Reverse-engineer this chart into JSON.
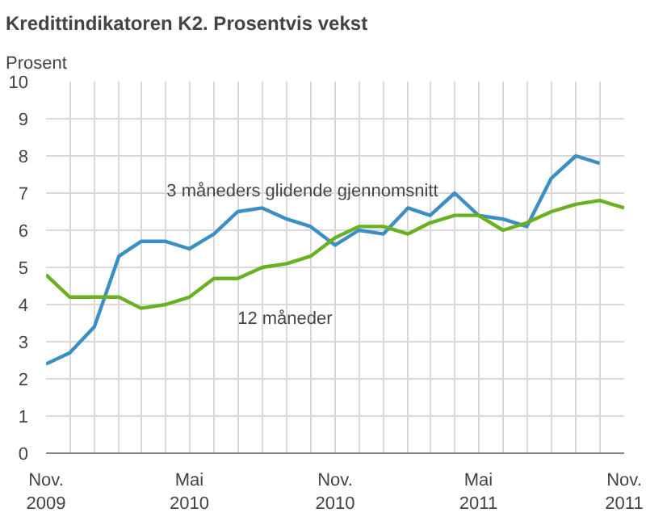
{
  "chart_data": {
    "type": "line",
    "title": "Kredittindikatoren K2. Prosentvis vekst",
    "ylabel": "Prosent",
    "x": [
      "2009-11",
      "2009-12",
      "2010-01",
      "2010-02",
      "2010-03",
      "2010-04",
      "2010-05",
      "2010-06",
      "2010-07",
      "2010-08",
      "2010-09",
      "2010-10",
      "2010-11",
      "2010-12",
      "2011-01",
      "2011-02",
      "2011-03",
      "2011-04",
      "2011-05",
      "2011-06",
      "2011-07",
      "2011-08",
      "2011-09",
      "2011-10",
      "2011-11"
    ],
    "series": [
      {
        "name": "3 måneders glidende gjennomsnitt",
        "color": "#3a8fc4",
        "values": [
          2.4,
          2.7,
          3.4,
          5.3,
          5.7,
          5.7,
          5.5,
          5.9,
          6.5,
          6.6,
          6.3,
          6.1,
          5.6,
          6.0,
          5.9,
          6.6,
          6.4,
          7.0,
          6.4,
          6.3,
          6.1,
          7.4,
          8.0,
          7.8,
          null
        ]
      },
      {
        "name": "12 måneder",
        "color": "#6ab023",
        "values": [
          4.8,
          4.2,
          4.2,
          4.2,
          3.9,
          4.0,
          4.2,
          4.7,
          4.7,
          5.0,
          5.1,
          5.3,
          5.8,
          6.1,
          6.1,
          5.9,
          6.2,
          6.4,
          6.4,
          6.0,
          6.2,
          6.5,
          6.7,
          6.8,
          6.6
        ]
      }
    ],
    "xlim": [
      "2009-11",
      "2011-11"
    ],
    "xticks": [
      {
        "value": "2009-11",
        "label": "Nov.\n2009"
      },
      {
        "value": "2009-12",
        "label": null
      },
      {
        "value": "2010-01",
        "label": null
      },
      {
        "value": "2010-02",
        "label": null
      },
      {
        "value": "2010-03",
        "label": null
      },
      {
        "value": "2010-04",
        "label": null
      },
      {
        "value": "2010-05",
        "label": "Mai\n2010"
      },
      {
        "value": "2010-06",
        "label": null
      },
      {
        "value": "2010-07",
        "label": null
      },
      {
        "value": "2010-08",
        "label": null
      },
      {
        "value": "2010-09",
        "label": null
      },
      {
        "value": "2010-10",
        "label": null
      },
      {
        "value": "2010-11",
        "label": "Nov.\n2010"
      },
      {
        "value": "2010-12",
        "label": null
      },
      {
        "value": "2011-01",
        "label": null
      },
      {
        "value": "2011-02",
        "label": null
      },
      {
        "value": "2011-03",
        "label": null
      },
      {
        "value": "2011-04",
        "label": null
      },
      {
        "value": "2011-05",
        "label": "Mai\n2011"
      },
      {
        "value": "2011-06",
        "label": null
      },
      {
        "value": "2011-07",
        "label": null
      },
      {
        "value": "2011-08",
        "label": null
      },
      {
        "value": "2011-09",
        "label": null
      },
      {
        "value": "2011-10",
        "label": null
      },
      {
        "value": "2011-11",
        "label": "Nov.\n2011"
      }
    ],
    "ylim": [
      0,
      10
    ],
    "yticks": [
      0,
      1,
      2,
      3,
      4,
      5,
      6,
      7,
      8,
      9,
      10
    ],
    "grid": true,
    "marker": "none",
    "line_style": "solid"
  }
}
